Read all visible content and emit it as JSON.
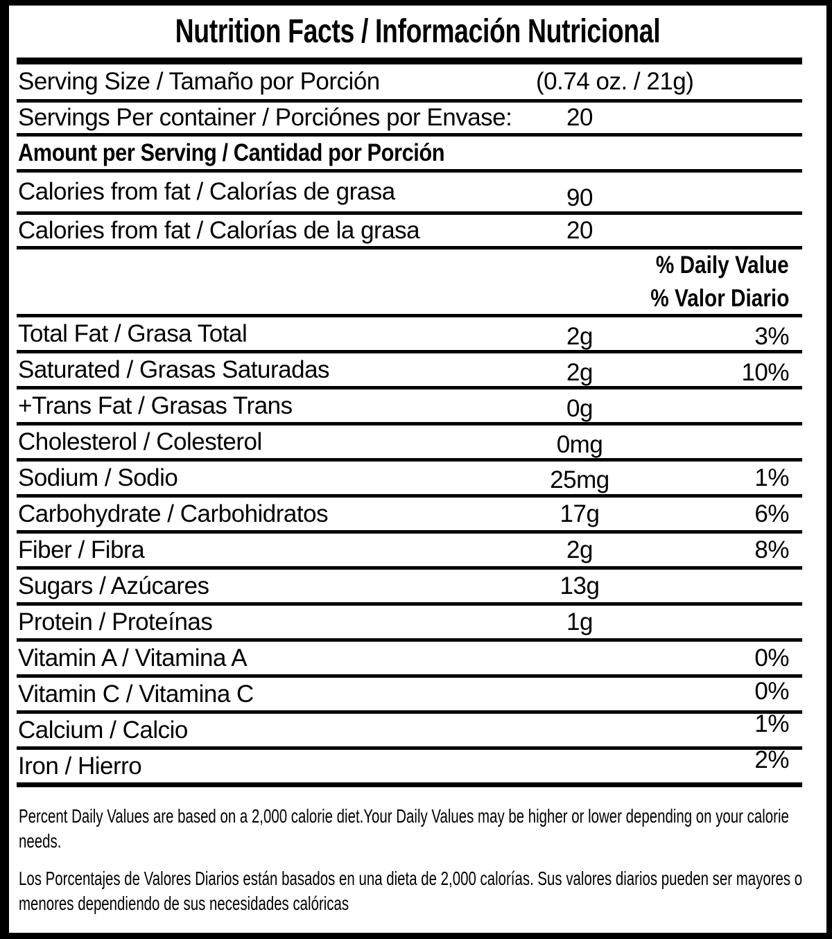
{
  "title": "Nutrition Facts / Información Nutricional",
  "serving_size": {
    "label": "Serving Size / Tamaño por Porción",
    "value": "(0.74 oz. / 21g)"
  },
  "servings_per_container": {
    "label": "Servings Per container / Porciónes por Envase:",
    "value": "20"
  },
  "amount_per_serving_heading": "Amount per Serving / Cantidad por Porción",
  "calories": [
    {
      "label": "Calories from fat / Calorías de grasa",
      "value": "90"
    },
    {
      "label": "Calories from fat / Calorías de la grasa",
      "value": "20"
    }
  ],
  "daily_value_heading_en": "% Daily Value",
  "daily_value_heading_es": "% Valor Diario",
  "nutrients": [
    {
      "label": "Total Fat / Grasa Total",
      "amount": "2g",
      "daily_value": "3%"
    },
    {
      "label": "Saturated / Grasas Saturadas",
      "amount": "2g",
      "daily_value": "10%"
    },
    {
      "label": "+Trans Fat / Grasas Trans",
      "amount": "0g",
      "daily_value": ""
    },
    {
      "label": "Cholesterol / Colesterol",
      "amount": "0mg",
      "daily_value": ""
    },
    {
      "label": "Sodium / Sodio",
      "amount": "25mg",
      "daily_value": "1%"
    },
    {
      "label": "Carbohydrate / Carbohidratos",
      "amount": "17g",
      "daily_value": "6%"
    },
    {
      "label": "Fiber / Fibra",
      "amount": "2g",
      "daily_value": "8%"
    },
    {
      "label": "Sugars / Azúcares",
      "amount": "13g",
      "daily_value": ""
    },
    {
      "label": "Protein / Proteínas",
      "amount": "1g",
      "daily_value": ""
    },
    {
      "label": "Vitamin A / Vitamina A",
      "amount": "",
      "daily_value": "0%"
    },
    {
      "label": "Vitamin C / Vitamina C",
      "amount": "",
      "daily_value": "0%"
    },
    {
      "label": "Calcium / Calcio",
      "amount": "",
      "daily_value": "1%"
    },
    {
      "label": "Iron / Hierro",
      "amount": "",
      "daily_value": "2%"
    }
  ],
  "footnote_en": "Percent Daily Values are based on a 2,000 calorie diet.Your Daily Values may be higher or lower depending on your calorie needs.",
  "footnote_es": "Los Porcentajes de Valores Diarios están basados en una dieta de 2,000 calorías. Sus valores diarios pueden ser mayores o menores dependiendo de sus necesidades calóricas",
  "colors": {
    "text": "#000000",
    "background": "#ffffff"
  }
}
